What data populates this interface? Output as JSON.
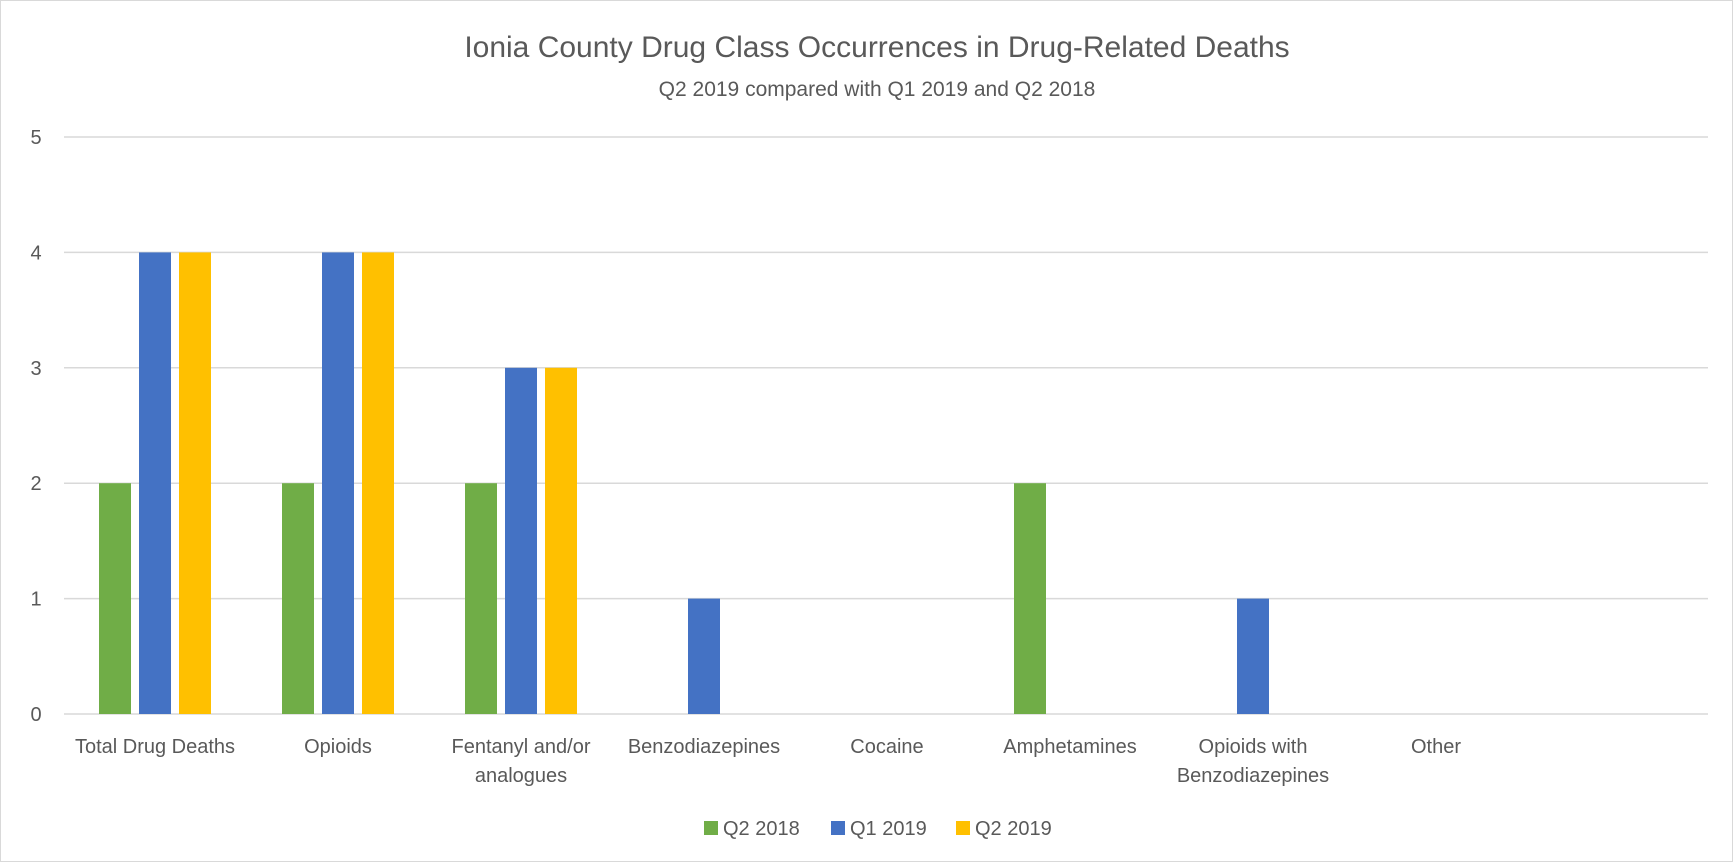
{
  "chart_data": {
    "type": "bar",
    "title": "Ionia County Drug Class Occurrences in Drug-Related Deaths",
    "subtitle": "Q2 2019 compared with Q1 2019 and Q2 2018",
    "categories": [
      [
        "Total Drug Deaths"
      ],
      [
        "Opioids"
      ],
      [
        "Fentanyl and/or",
        "analogues"
      ],
      [
        "Benzodiazepines"
      ],
      [
        "Cocaine"
      ],
      [
        "Amphetamines"
      ],
      [
        "Opioids with",
        "Benzodiazepines"
      ],
      [
        "Other"
      ]
    ],
    "series": [
      {
        "name": "Q2 2018",
        "color": "#70ad47",
        "values": [
          2,
          2,
          2,
          0,
          0,
          2,
          0,
          0
        ]
      },
      {
        "name": "Q1 2019",
        "color": "#4472c4",
        "values": [
          4,
          4,
          3,
          1,
          0,
          0,
          1,
          0
        ]
      },
      {
        "name": "Q2 2019",
        "color": "#ffc000",
        "values": [
          4,
          4,
          3,
          0,
          0,
          0,
          0,
          0
        ]
      }
    ],
    "ylim": [
      0,
      5
    ],
    "yticks": [
      0,
      1,
      2,
      3,
      4,
      5
    ],
    "grid": true,
    "gridline_color": "#d9d9d9",
    "text_color": "#595959",
    "legend_position": "bottom"
  }
}
